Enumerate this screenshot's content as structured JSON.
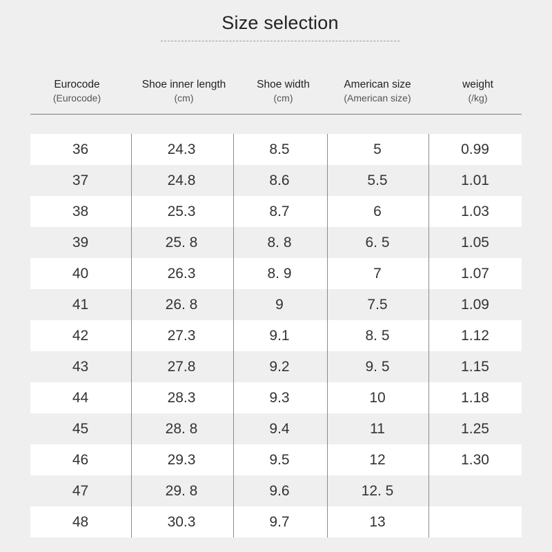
{
  "title": "Size selection",
  "columns": [
    {
      "label": "Eurocode",
      "sub": "(Eurocode)"
    },
    {
      "label": "Shoe inner length",
      "sub": "(cm)"
    },
    {
      "label": "Shoe width",
      "sub": "(cm)"
    },
    {
      "label": "American size",
      "sub": "(American size)"
    },
    {
      "label": "weight",
      "sub": "(/kg)"
    }
  ],
  "rows": [
    [
      "36",
      "24.3",
      "8.5",
      "5",
      "0.99"
    ],
    [
      "37",
      "24.8",
      "8.6",
      "5.5",
      "1.01"
    ],
    [
      "38",
      "25.3",
      "8.7",
      "6",
      "1.03"
    ],
    [
      "39",
      "25. 8",
      "8. 8",
      "6. 5",
      "1.05"
    ],
    [
      "40",
      "26.3",
      "8. 9",
      "7",
      "1.07"
    ],
    [
      "41",
      "26. 8",
      "9",
      "7.5",
      "1.09"
    ],
    [
      "42",
      "27.3",
      "9.1",
      "8. 5",
      "1.12"
    ],
    [
      "43",
      "27.8",
      "9.2",
      "9. 5",
      "1.15"
    ],
    [
      "44",
      "28.3",
      "9.3",
      "10",
      "1.18"
    ],
    [
      "45",
      "28. 8",
      "9.4",
      "11",
      "1.25"
    ],
    [
      "46",
      "29.3",
      "9.5",
      "12",
      "1.30"
    ],
    [
      "47",
      "29. 8",
      "9.6",
      "12. 5",
      ""
    ],
    [
      "48",
      "30.3",
      "9.7",
      "13",
      ""
    ]
  ]
}
